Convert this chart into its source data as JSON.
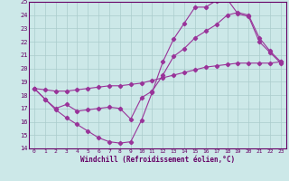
{
  "xlabel": "Windchill (Refroidissement éolien,°C)",
  "bg_color": "#cce8e8",
  "grid_color": "#aacccc",
  "line_color": "#993399",
  "xlim": [
    -0.5,
    23.5
  ],
  "ylim": [
    14,
    25
  ],
  "yticks": [
    14,
    15,
    16,
    17,
    18,
    19,
    20,
    21,
    22,
    23,
    24,
    25
  ],
  "xticks": [
    0,
    1,
    2,
    3,
    4,
    5,
    6,
    7,
    8,
    9,
    10,
    11,
    12,
    13,
    14,
    15,
    16,
    17,
    18,
    19,
    20,
    21,
    22,
    23
  ],
  "line1_x": [
    0,
    1,
    2,
    3,
    4,
    5,
    6,
    7,
    8,
    9,
    10,
    11,
    12,
    13,
    14,
    15,
    16,
    17,
    18,
    19,
    20,
    21,
    22,
    23
  ],
  "line1_y": [
    18.5,
    17.7,
    16.9,
    16.3,
    15.8,
    15.3,
    14.8,
    14.5,
    14.4,
    14.5,
    16.1,
    18.2,
    20.5,
    22.2,
    23.4,
    24.6,
    24.6,
    25.1,
    25.2,
    24.1,
    23.9,
    22.0,
    21.2,
    20.4
  ],
  "line2_x": [
    0,
    1,
    2,
    3,
    4,
    5,
    6,
    7,
    8,
    9,
    10,
    11,
    12,
    13,
    14,
    15,
    16,
    17,
    18,
    19,
    20,
    21,
    22,
    23
  ],
  "line2_y": [
    18.5,
    18.4,
    18.3,
    18.3,
    18.4,
    18.5,
    18.6,
    18.7,
    18.7,
    18.8,
    18.9,
    19.1,
    19.3,
    19.5,
    19.7,
    19.9,
    20.1,
    20.2,
    20.3,
    20.4,
    20.4,
    20.4,
    20.4,
    20.5
  ],
  "line3_x": [
    0,
    1,
    2,
    3,
    4,
    5,
    6,
    7,
    8,
    9,
    10,
    11,
    12,
    13,
    14,
    15,
    16,
    17,
    18,
    19,
    20,
    21,
    22,
    23
  ],
  "line3_y": [
    18.5,
    17.7,
    17.0,
    17.3,
    16.8,
    16.9,
    17.0,
    17.1,
    17.0,
    16.2,
    17.8,
    18.3,
    19.5,
    20.9,
    21.5,
    22.3,
    22.8,
    23.3,
    24.0,
    24.2,
    24.0,
    22.3,
    21.3,
    20.5
  ]
}
